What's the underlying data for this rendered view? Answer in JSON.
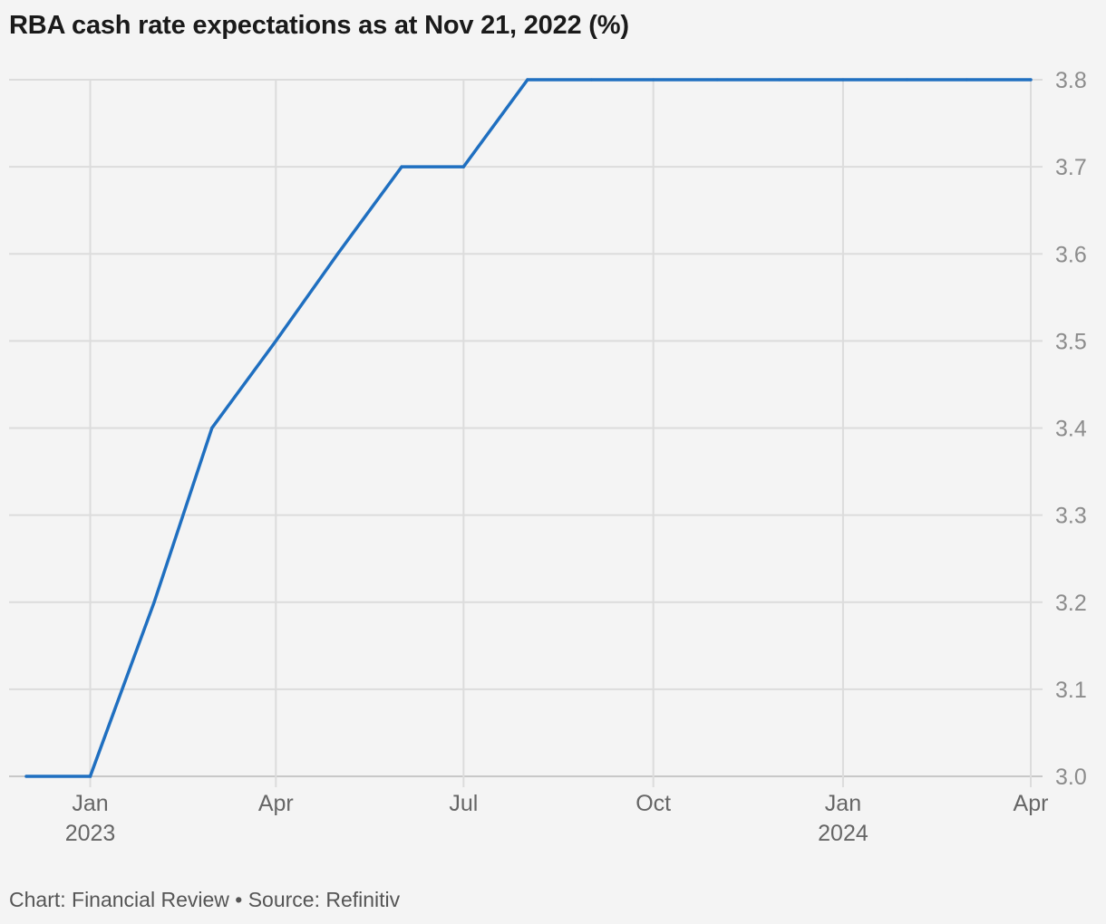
{
  "title": "RBA cash rate expectations as at Nov 21, 2022 (%)",
  "footer": {
    "credit": "Chart: Financial Review • Source: Refinitiv"
  },
  "colors": {
    "line": "#1f6fc0",
    "grid": "#dcdcdc",
    "background": "#f4f4f4"
  },
  "chart_data": {
    "type": "line",
    "title": "RBA cash rate expectations as at Nov 21, 2022 (%)",
    "xlabel": "",
    "ylabel": "",
    "x_axis_type": "date",
    "y_axis_position": "right",
    "ylim": [
      3.0,
      3.8
    ],
    "xlim": [
      "2022-12-01",
      "2024-04-01"
    ],
    "grid": true,
    "y_ticks": [
      "3.0",
      "3.1",
      "3.2",
      "3.3",
      "3.4",
      "3.5",
      "3.6",
      "3.7",
      "3.8"
    ],
    "x_ticks": [
      {
        "date": "2023-01-01",
        "label": "Jan",
        "sublabel": "2023"
      },
      {
        "date": "2023-04-01",
        "label": "Apr",
        "sublabel": ""
      },
      {
        "date": "2023-07-01",
        "label": "Jul",
        "sublabel": ""
      },
      {
        "date": "2023-10-01",
        "label": "Oct",
        "sublabel": ""
      },
      {
        "date": "2024-01-01",
        "label": "Jan",
        "sublabel": "2024"
      },
      {
        "date": "2024-04-01",
        "label": "Apr",
        "sublabel": ""
      }
    ],
    "series": [
      {
        "points": [
          {
            "x": "2022-12-01",
            "y": 3.0
          },
          {
            "x": "2023-01-01",
            "y": 3.0
          },
          {
            "x": "2023-02-01",
            "y": 3.2
          },
          {
            "x": "2023-03-01",
            "y": 3.4
          },
          {
            "x": "2023-04-01",
            "y": 3.5
          },
          {
            "x": "2023-05-01",
            "y": 3.6
          },
          {
            "x": "2023-06-01",
            "y": 3.7
          },
          {
            "x": "2023-07-01",
            "y": 3.7
          },
          {
            "x": "2023-08-01",
            "y": 3.8
          },
          {
            "x": "2023-09-01",
            "y": 3.8
          },
          {
            "x": "2023-10-01",
            "y": 3.8
          },
          {
            "x": "2023-11-01",
            "y": 3.8
          },
          {
            "x": "2023-12-01",
            "y": 3.8
          },
          {
            "x": "2024-01-01",
            "y": 3.8
          },
          {
            "x": "2024-02-01",
            "y": 3.8
          },
          {
            "x": "2024-03-01",
            "y": 3.8
          },
          {
            "x": "2024-04-01",
            "y": 3.8
          }
        ]
      }
    ]
  }
}
